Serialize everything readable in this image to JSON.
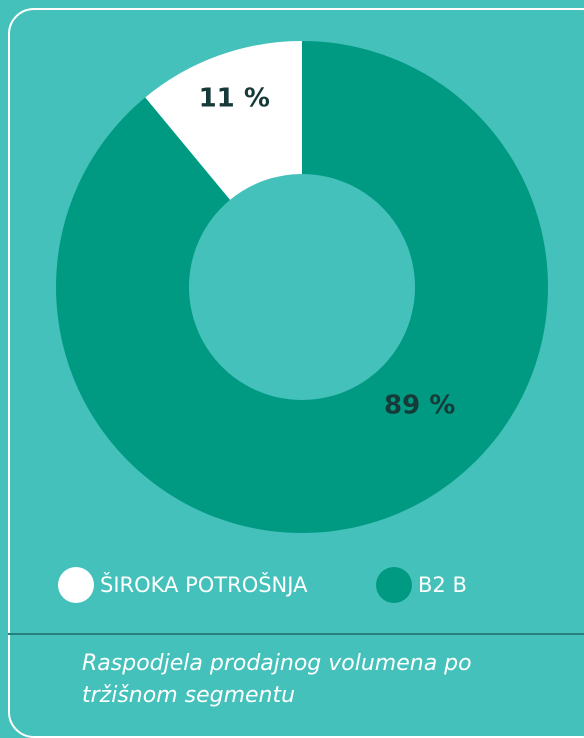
{
  "chart_data": {
    "type": "donut",
    "categories": [
      "ŠIROKA POTROŠNJA",
      "B2 B"
    ],
    "values": [
      11,
      89
    ],
    "value_labels": [
      "11 %",
      "89 %"
    ],
    "colors": [
      "#ffffff",
      "#009a82"
    ],
    "caption": "Raspodjela prodajnog volumena po tržišnom segmentu"
  }
}
